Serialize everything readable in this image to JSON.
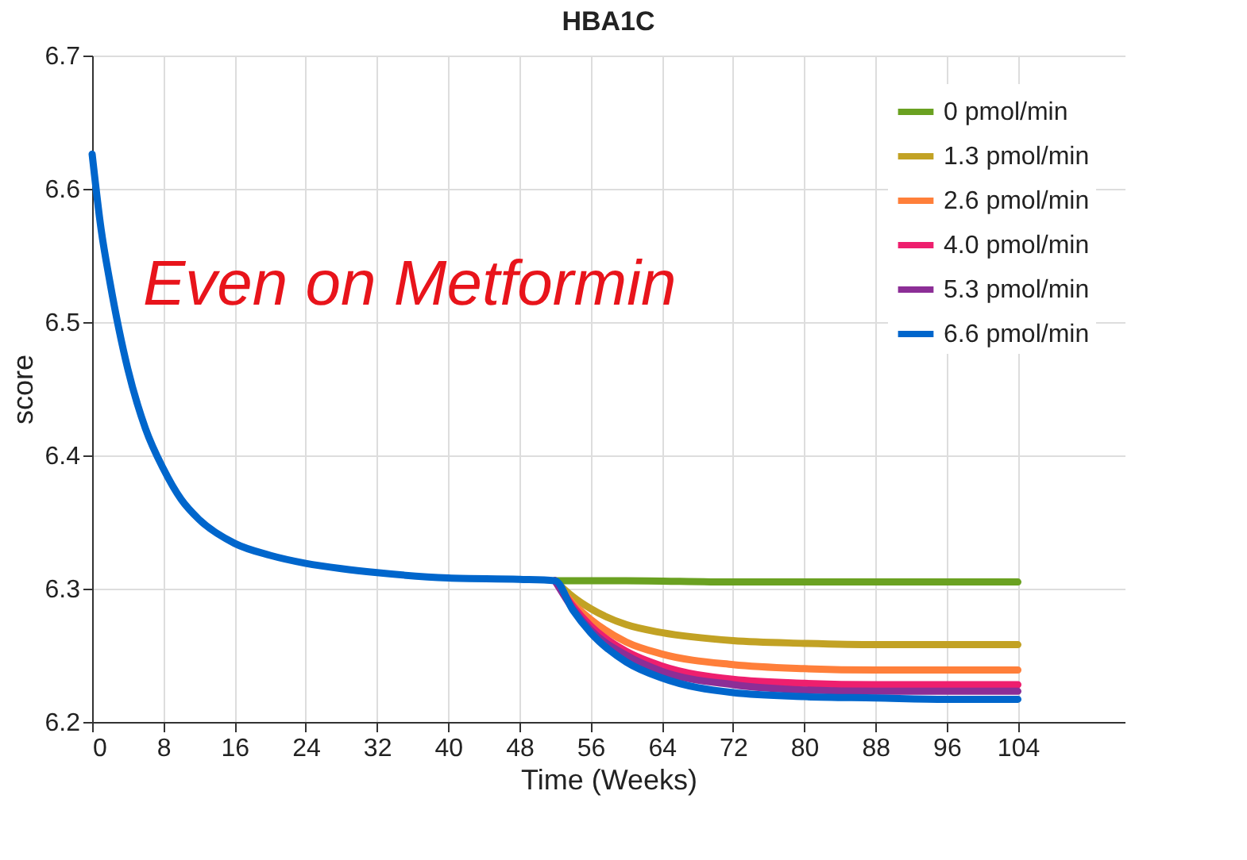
{
  "chart_data": {
    "type": "line",
    "title": "HBA1C",
    "xlabel": "Time (Weeks)",
    "ylabel": "score",
    "xlim": [
      0,
      116
    ],
    "xticks": [
      0,
      8,
      16,
      24,
      32,
      40,
      48,
      56,
      64,
      72,
      80,
      88,
      96,
      104
    ],
    "ylim": [
      6.2,
      6.7
    ],
    "yticks": [
      6.2,
      6.3,
      6.4,
      6.5,
      6.6,
      6.7
    ],
    "grid": true,
    "legend": "top right",
    "line_style": "solid",
    "marker": "none",
    "annotations": [
      "Even on Metformin"
    ],
    "series": [
      {
        "name": "0 pmol/min",
        "color": "#6aa121",
        "x": [
          52,
          60,
          72,
          88,
          104
        ],
        "values": [
          6.306,
          6.306,
          6.305,
          6.305,
          6.305
        ]
      },
      {
        "name": "1.3 pmol/min",
        "color": "#c2a224",
        "x": [
          52,
          54,
          56,
          60,
          64,
          72,
          80,
          88,
          96,
          104
        ],
        "values": [
          6.306,
          6.294,
          6.285,
          6.273,
          6.267,
          6.261,
          6.259,
          6.258,
          6.258,
          6.258
        ]
      },
      {
        "name": "2.6 pmol/min",
        "color": "#ff7f3a",
        "x": [
          52,
          54,
          56,
          60,
          64,
          72,
          80,
          88,
          96,
          104
        ],
        "values": [
          6.306,
          6.289,
          6.277,
          6.26,
          6.251,
          6.243,
          6.24,
          6.239,
          6.239,
          6.239
        ]
      },
      {
        "name": "4.0 pmol/min",
        "color": "#ee1f6e",
        "x": [
          52,
          54,
          56,
          60,
          64,
          72,
          80,
          88,
          96,
          104
        ],
        "values": [
          6.306,
          6.287,
          6.272,
          6.253,
          6.242,
          6.232,
          6.229,
          6.228,
          6.228,
          6.228
        ]
      },
      {
        "name": "5.3 pmol/min",
        "color": "#8c2e96",
        "x": [
          52,
          54,
          56,
          60,
          64,
          72,
          80,
          88,
          96,
          104
        ],
        "values": [
          6.306,
          6.285,
          6.269,
          6.25,
          6.238,
          6.228,
          6.224,
          6.223,
          6.223,
          6.223
        ]
      },
      {
        "name": "6.6 pmol/min",
        "color": "#0066cc",
        "x": [
          0,
          1,
          2,
          3,
          4,
          6,
          8,
          10,
          12,
          16,
          20,
          24,
          28,
          32,
          40,
          48,
          52,
          54,
          56,
          60,
          64,
          72,
          80,
          88,
          96,
          104
        ],
        "values": [
          6.626,
          6.57,
          6.53,
          6.495,
          6.465,
          6.42,
          6.39,
          6.367,
          6.352,
          6.334,
          6.325,
          6.319,
          6.315,
          6.312,
          6.308,
          6.307,
          6.306,
          6.284,
          6.267,
          6.245,
          6.233,
          6.222,
          6.219,
          6.218,
          6.217,
          6.217
        ]
      }
    ]
  }
}
